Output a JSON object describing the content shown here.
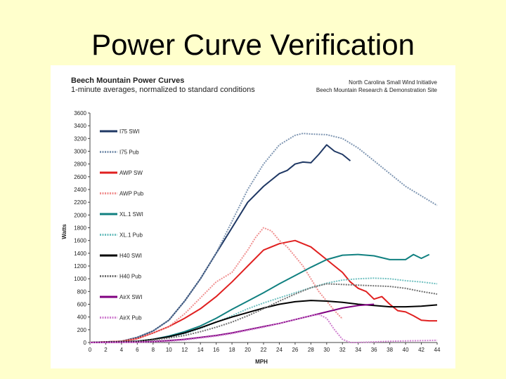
{
  "slide": {
    "title": "Power Curve Verification"
  },
  "chart_data": {
    "type": "line",
    "title": "Beech Mountain Power Curves",
    "subtitle": "1-minute averages, normalized to standard conditions",
    "source": [
      "North Carolina Small Wind Initiative",
      "Beech Mountain Research & Demonstration Site"
    ],
    "xlabel": "MPH",
    "ylabel": "Watts",
    "xlim": [
      0,
      44
    ],
    "ylim": [
      0,
      3600
    ],
    "xticks": [
      0,
      2,
      4,
      6,
      8,
      10,
      12,
      14,
      16,
      18,
      20,
      22,
      24,
      26,
      28,
      30,
      32,
      34,
      36,
      38,
      40,
      42,
      44
    ],
    "yticks": [
      0,
      200,
      400,
      600,
      800,
      1000,
      1200,
      1400,
      1600,
      1800,
      2000,
      2200,
      2400,
      2600,
      2800,
      3000,
      3200,
      3400,
      3600
    ],
    "legend_position": "left",
    "series": [
      {
        "name": "I75 SWI",
        "color": "#1f3864",
        "dash": "",
        "x": [
          0,
          4,
          6,
          8,
          10,
          12,
          14,
          16,
          18,
          20,
          22,
          24,
          25,
          26,
          27,
          28,
          29,
          30,
          31,
          32,
          33
        ],
        "y": [
          0,
          20,
          80,
          180,
          350,
          650,
          1000,
          1400,
          1800,
          2200,
          2450,
          2650,
          2700,
          2800,
          2830,
          2820,
          2950,
          3100,
          3000,
          2950,
          2850
        ]
      },
      {
        "name": "I75 Pub",
        "color": "#7f96b2",
        "dash": "2,1.5",
        "x": [
          0,
          4,
          6,
          8,
          10,
          12,
          14,
          16,
          18,
          20,
          22,
          24,
          26,
          27,
          28,
          30,
          32,
          34,
          36,
          38,
          40,
          42,
          44
        ],
        "y": [
          0,
          20,
          80,
          180,
          350,
          650,
          1000,
          1400,
          1900,
          2400,
          2800,
          3100,
          3250,
          3280,
          3270,
          3260,
          3200,
          3050,
          2850,
          2650,
          2450,
          2300,
          2150
        ]
      },
      {
        "name": "AWP SW",
        "color": "#e02020",
        "dash": "",
        "x": [
          0,
          4,
          6,
          8,
          10,
          12,
          14,
          16,
          18,
          20,
          22,
          24,
          26,
          28,
          30,
          31,
          32,
          33,
          34,
          35,
          36,
          37,
          38,
          39,
          40,
          41,
          42,
          43,
          44
        ],
        "y": [
          0,
          20,
          60,
          150,
          250,
          380,
          530,
          720,
          950,
          1200,
          1450,
          1550,
          1600,
          1500,
          1300,
          1200,
          1100,
          950,
          850,
          800,
          680,
          720,
          600,
          500,
          480,
          420,
          350,
          340,
          340
        ]
      },
      {
        "name": "AWP Pub",
        "color": "#f09090",
        "dash": "2,1.5",
        "x": [
          0,
          4,
          6,
          8,
          10,
          12,
          14,
          16,
          18,
          20,
          21,
          22,
          23,
          24,
          25,
          26,
          27,
          28,
          29,
          30,
          31,
          32
        ],
        "y": [
          0,
          20,
          60,
          150,
          250,
          450,
          700,
          950,
          1100,
          1450,
          1650,
          1800,
          1750,
          1600,
          1500,
          1350,
          1200,
          1000,
          800,
          650,
          500,
          370
        ]
      },
      {
        "name": "XL.1 SWI",
        "color": "#108080",
        "dash": "",
        "x": [
          0,
          6,
          8,
          10,
          12,
          14,
          16,
          18,
          20,
          22,
          24,
          26,
          28,
          30,
          32,
          34,
          36,
          38,
          40,
          41,
          42,
          43
        ],
        "y": [
          0,
          20,
          50,
          100,
          170,
          260,
          380,
          520,
          650,
          780,
          920,
          1050,
          1180,
          1300,
          1370,
          1380,
          1360,
          1300,
          1300,
          1380,
          1320,
          1380
        ]
      },
      {
        "name": "XL.1 Pub",
        "color": "#70c0c0",
        "dash": "2,1.5",
        "x": [
          0,
          6,
          8,
          10,
          12,
          14,
          16,
          18,
          20,
          22,
          24,
          26,
          28,
          30,
          32,
          34,
          36,
          38,
          40,
          42,
          44
        ],
        "y": [
          0,
          20,
          50,
          80,
          140,
          220,
          320,
          420,
          530,
          620,
          700,
          780,
          860,
          930,
          980,
          1000,
          1010,
          1000,
          970,
          950,
          920
        ]
      },
      {
        "name": "H40 SWI",
        "color": "#000000",
        "dash": "",
        "x": [
          0,
          6,
          8,
          10,
          12,
          14,
          16,
          18,
          20,
          22,
          24,
          26,
          28,
          30,
          32,
          34,
          36,
          38,
          40,
          42,
          44
        ],
        "y": [
          0,
          20,
          50,
          90,
          150,
          230,
          320,
          400,
          470,
          540,
          600,
          640,
          660,
          650,
          630,
          600,
          580,
          560,
          560,
          570,
          590
        ]
      },
      {
        "name": "H40 Pub",
        "color": "#707070",
        "dash": "2,1.5",
        "x": [
          0,
          6,
          8,
          10,
          12,
          14,
          16,
          18,
          20,
          22,
          24,
          26,
          28,
          30,
          32,
          34,
          36,
          38,
          40,
          42,
          44
        ],
        "y": [
          0,
          20,
          40,
          70,
          110,
          170,
          240,
          320,
          420,
          530,
          650,
          760,
          860,
          920,
          910,
          900,
          890,
          880,
          850,
          800,
          760
        ]
      },
      {
        "name": "AirX SWI",
        "color": "#800080",
        "dash": "",
        "x": [
          0,
          6,
          8,
          10,
          12,
          14,
          16,
          18,
          20,
          22,
          24,
          26,
          28,
          30,
          32,
          34,
          36
        ],
        "y": [
          0,
          5,
          15,
          30,
          50,
          80,
          110,
          150,
          200,
          250,
          300,
          360,
          420,
          480,
          540,
          580,
          600
        ]
      },
      {
        "name": "AirX Pub",
        "color": "#d080d0",
        "dash": "2,1.5",
        "x": [
          0,
          8,
          10,
          12,
          14,
          16,
          18,
          20,
          22,
          24,
          26,
          28,
          29,
          30,
          31,
          32,
          33,
          34,
          36,
          38,
          40,
          42,
          44
        ],
        "y": [
          0,
          10,
          20,
          40,
          70,
          100,
          140,
          190,
          240,
          300,
          360,
          420,
          440,
          380,
          200,
          50,
          0,
          0,
          10,
          20,
          25,
          30,
          35
        ]
      }
    ]
  }
}
